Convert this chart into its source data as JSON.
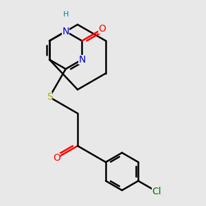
{
  "bg_color": "#e8e8e8",
  "bond_color": "#000000",
  "bond_width": 1.8,
  "atom_colors": {
    "N": "#0000cc",
    "O": "#ff0000",
    "S": "#aaaa00",
    "Cl": "#007700",
    "H": "#008888",
    "C": "#000000"
  },
  "font_size_atom": 10,
  "font_size_H": 8
}
